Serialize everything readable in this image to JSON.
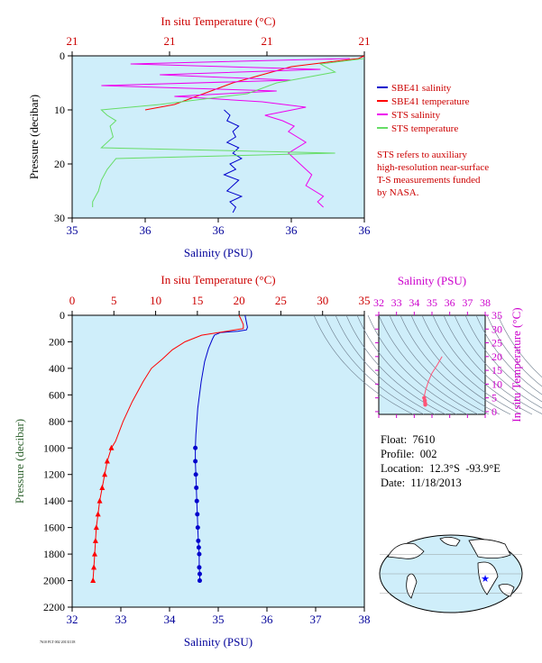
{
  "colors": {
    "panel_bg": "#cfeefa",
    "salinity": "#0000cc",
    "temperature": "#ff0000",
    "sts_salinity": "#ee00ee",
    "sts_temperature": "#66dd66",
    "sts_salinity_axis": "#cc00cc",
    "axis_red": "#cc0000",
    "axis_blue": "#000099",
    "pressure_axis": "#336633"
  },
  "legend": {
    "items": [
      "SBE41 salinity",
      "SBE41 temperature",
      "STS salinity",
      "STS temperature"
    ],
    "note": [
      "STS refers to auxiliary",
      "high-resolution near-surface",
      "T-S measurements funded",
      "by NASA."
    ]
  },
  "float_info": {
    "float": "Float:  7610",
    "profile": "Profile:  002",
    "location": "Location:  12.3°S  -93.9°E",
    "date": "Date:  11/18/2013"
  },
  "footer_id": "7610 FLT 002 20131118",
  "chart_data": [
    {
      "name": "top-panel",
      "type": "line",
      "top_axis_title": "In situ Temperature (°C)",
      "top_ticks": [
        "21",
        "21",
        "21",
        "21"
      ],
      "xlabel": "Salinity (PSU)",
      "x_ticks": [
        "35",
        "36",
        "36",
        "36",
        "36"
      ],
      "ylabel": "Pressure (decibar)",
      "y_ticks": [
        "0",
        "10",
        "20",
        "30"
      ],
      "ylim": [
        0,
        30
      ],
      "note": "Top-panel tick labels are printed rounded; plotting uses x fraction of axis width.",
      "series": [
        {
          "name": "SBE41 salinity",
          "key": "sbe_sal",
          "x": [
            0.52,
            0.54,
            0.53,
            0.57,
            0.55,
            0.56,
            0.53,
            0.57,
            0.55,
            0.58,
            0.54,
            0.56,
            0.52,
            0.57,
            0.55,
            0.53,
            0.58,
            0.54,
            0.56,
            0.55
          ],
          "y": [
            10,
            11,
            12,
            13,
            14,
            15,
            16,
            17,
            18,
            19,
            20,
            21,
            22,
            23,
            24,
            25,
            26,
            27,
            28,
            29
          ]
        },
        {
          "name": "SBE41 temperature",
          "key": "sbe_temp",
          "x": [
            1.0,
            0.98,
            0.9,
            0.75,
            0.55,
            0.35,
            0.25
          ],
          "y": [
            0,
            0.5,
            1,
            2,
            5,
            9,
            10
          ]
        },
        {
          "name": "STS salinity",
          "key": "sts_sal",
          "x": [
            0.95,
            0.2,
            0.85,
            0.3,
            0.75,
            0.1,
            0.7,
            0.35,
            0.65,
            0.8,
            0.66,
            0.72,
            0.76,
            0.74,
            0.8,
            0.74,
            0.78,
            0.82,
            0.8,
            0.86,
            0.84,
            0.86
          ],
          "y": [
            0.5,
            1.5,
            2.5,
            3.5,
            4.5,
            5.5,
            6.5,
            7.5,
            8.5,
            9.5,
            11,
            12,
            13,
            14,
            16,
            18,
            20,
            22,
            24,
            26,
            27,
            28
          ]
        },
        {
          "name": "STS temperature",
          "key": "sts_temp",
          "x": [
            1.0,
            0.85,
            0.9,
            0.7,
            0.6,
            0.3,
            0.1,
            0.12,
            0.15,
            0.13,
            0.14,
            0.1,
            0.9,
            0.15,
            0.12,
            0.1,
            0.09,
            0.08,
            0.07,
            0.07
          ],
          "y": [
            0.5,
            1.5,
            3,
            5,
            7,
            9,
            10,
            11,
            12,
            13,
            15,
            17,
            18,
            19,
            21,
            23,
            25,
            26,
            27,
            28
          ]
        }
      ]
    },
    {
      "name": "main-profile",
      "type": "line",
      "top_axis_title": "In situ Temperature (°C)",
      "top_ticks": [
        0,
        5,
        10,
        15,
        20,
        25,
        30,
        35
      ],
      "xlabel": "Salinity (PSU)",
      "x_ticks": [
        32,
        33,
        34,
        35,
        36,
        37,
        38
      ],
      "xlim": [
        32,
        38
      ],
      "temp_lim": [
        0,
        35
      ],
      "ylabel": "Pressure (decibar)",
      "y_ticks": [
        0,
        200,
        400,
        600,
        800,
        1000,
        1200,
        1400,
        1600,
        1800,
        2000,
        2200
      ],
      "ylim": [
        0,
        2200
      ],
      "series": [
        {
          "name": "SBE41 salinity",
          "key": "sal",
          "axis": "salinity",
          "x": [
            35.55,
            35.6,
            35.58,
            35.4,
            35.05,
            34.92,
            34.88,
            34.8,
            34.72,
            34.65,
            34.58,
            34.54,
            34.53,
            34.53,
            34.54,
            34.55,
            34.56,
            34.57,
            34.58,
            34.59,
            34.6,
            34.61,
            34.61,
            34.62,
            34.62
          ],
          "y": [
            0,
            90,
            110,
            120,
            130,
            150,
            180,
            250,
            350,
            500,
            700,
            900,
            1000,
            1100,
            1200,
            1300,
            1400,
            1500,
            1600,
            1700,
            1750,
            1800,
            1900,
            1950,
            2000
          ]
        },
        {
          "name": "SBE41 temperature",
          "key": "temp",
          "axis": "temperature",
          "x": [
            20.0,
            20.3,
            20.5,
            20.5,
            18.5,
            15.5,
            13.5,
            12.0,
            10.8,
            9.5,
            8.5,
            7.2,
            6.1,
            5.2,
            4.7,
            4.2,
            3.9,
            3.6,
            3.3,
            3.1,
            2.9,
            2.8,
            2.7,
            2.6,
            2.5
          ],
          "y": [
            0,
            40,
            70,
            100,
            120,
            150,
            200,
            260,
            330,
            400,
            500,
            650,
            800,
            950,
            1000,
            1100,
            1200,
            1300,
            1400,
            1500,
            1600,
            1700,
            1800,
            1900,
            2000
          ]
        }
      ],
      "markers_from_pressure": 1000
    },
    {
      "name": "ts-diagram",
      "type": "line",
      "top_axis_title": "Salinity (PSU)",
      "x_ticks": [
        32,
        33,
        34,
        35,
        36,
        37,
        38
      ],
      "xlim": [
        32,
        38
      ],
      "ylabel": "In situ Temperature (°C)",
      "y_ticks": [
        0,
        5,
        10,
        15,
        20,
        25,
        30,
        35
      ],
      "ylim": [
        -1,
        35
      ],
      "series": [
        {
          "name": "T-S",
          "key": "ts",
          "x": [
            35.57,
            35.3,
            35.0,
            34.8,
            34.65,
            34.58,
            34.56,
            34.6,
            34.62,
            34.62
          ],
          "y": [
            20,
            17,
            14,
            11,
            8,
            6,
            5,
            4,
            3,
            2.5
          ]
        }
      ]
    }
  ]
}
